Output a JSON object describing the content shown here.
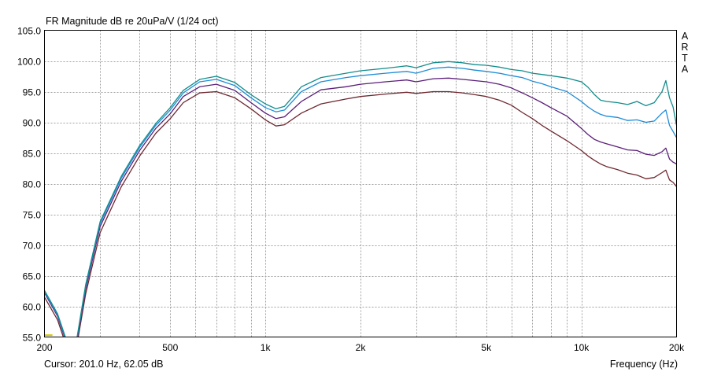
{
  "title": "FR Magnitude dB re 20uPa/V (1/24 oct)",
  "watermark": [
    "A",
    "R",
    "T",
    "A"
  ],
  "cursor_text": "Cursor: 201.0 Hz, 62.05 dB",
  "xlabel": "Frequency (Hz)",
  "chart_data": {
    "type": "line",
    "title": "FR Magnitude dB re 20uPa/V (1/24 oct)",
    "xlabel": "Frequency (Hz)",
    "ylabel": "",
    "xscale": "log",
    "xlim": [
      200,
      20000
    ],
    "ylim": [
      55,
      105
    ],
    "grid": true,
    "x_ticks": [
      {
        "value": 200,
        "label": "200"
      },
      {
        "value": 500,
        "label": "500"
      },
      {
        "value": 1000,
        "label": "1k"
      },
      {
        "value": 2000,
        "label": "2k"
      },
      {
        "value": 5000,
        "label": "5k"
      },
      {
        "value": 10000,
        "label": "10k"
      },
      {
        "value": 20000,
        "label": "20k"
      }
    ],
    "x_minor_grid": [
      300,
      400,
      600,
      700,
      800,
      900,
      3000,
      4000,
      6000,
      7000,
      8000,
      9000
    ],
    "y_ticks": [
      {
        "value": 105,
        "label": "105.0"
      },
      {
        "value": 100,
        "label": "100.0"
      },
      {
        "value": 95,
        "label": "95.0"
      },
      {
        "value": 90,
        "label": "90.0"
      },
      {
        "value": 85,
        "label": "85.0"
      },
      {
        "value": 80,
        "label": "80.0"
      },
      {
        "value": 75,
        "label": "75.0"
      },
      {
        "value": 70,
        "label": "70.0"
      },
      {
        "value": 65,
        "label": "65.0"
      },
      {
        "value": 60,
        "label": "60.0"
      },
      {
        "value": 55,
        "label": "55.0"
      }
    ],
    "series": [
      {
        "color": "#138c8c",
        "x": [
          200,
          220,
          240,
          250,
          270,
          300,
          350,
          400,
          450,
          500,
          550,
          620,
          700,
          800,
          900,
          1000,
          1080,
          1150,
          1300,
          1500,
          1800,
          2000,
          2400,
          2800,
          3000,
          3400,
          3800,
          4200,
          4600,
          5000,
          5500,
          6000,
          6500,
          7000,
          7500,
          8000,
          9000,
          10000,
          10500,
          11000,
          11500,
          12000,
          13000,
          14000,
          15000,
          16000,
          17000,
          18000,
          18500,
          19000,
          19500,
          20000
        ],
        "y": [
          62.6,
          58.8,
          53.0,
          53.0,
          63.5,
          73.8,
          81.2,
          86.2,
          89.8,
          92.4,
          95.2,
          97.0,
          97.5,
          96.5,
          94.5,
          93.0,
          92.2,
          92.6,
          95.8,
          97.3,
          98.0,
          98.4,
          98.8,
          99.2,
          98.9,
          99.7,
          99.9,
          99.7,
          99.4,
          99.3,
          99.0,
          98.6,
          98.4,
          98.0,
          97.8,
          97.6,
          97.2,
          96.6,
          95.7,
          94.5,
          93.6,
          93.4,
          93.2,
          92.9,
          93.4,
          92.7,
          93.2,
          95.0,
          96.8,
          94.0,
          92.5,
          89.5
        ]
      },
      {
        "color": "#1e8cd6",
        "x": [
          200,
          220,
          240,
          250,
          270,
          300,
          350,
          400,
          450,
          500,
          550,
          620,
          700,
          800,
          900,
          1000,
          1080,
          1150,
          1300,
          1500,
          1800,
          2000,
          2400,
          2800,
          3000,
          3400,
          3800,
          4200,
          4600,
          5000,
          5500,
          6000,
          6500,
          7000,
          7500,
          8000,
          9000,
          10000,
          10500,
          11000,
          11500,
          12000,
          13000,
          14000,
          15000,
          16000,
          17000,
          18000,
          18500,
          19000,
          19500,
          20000
        ],
        "y": [
          62.4,
          58.6,
          52.8,
          52.8,
          63.2,
          73.5,
          80.9,
          85.9,
          89.5,
          92.0,
          94.8,
          96.6,
          97.0,
          96.0,
          94.0,
          92.4,
          91.7,
          92.0,
          95.0,
          96.6,
          97.3,
          97.6,
          98.0,
          98.3,
          98.0,
          98.8,
          99.0,
          98.8,
          98.5,
          98.3,
          98.0,
          97.6,
          97.3,
          96.7,
          96.3,
          95.8,
          95.0,
          93.4,
          92.5,
          91.8,
          91.3,
          91.0,
          90.8,
          90.3,
          90.4,
          90.0,
          90.2,
          91.5,
          92.0,
          89.5,
          88.5,
          87.5
        ]
      },
      {
        "color": "#5a1e78",
        "x": [
          200,
          220,
          240,
          250,
          270,
          300,
          350,
          400,
          450,
          500,
          550,
          620,
          700,
          800,
          900,
          1000,
          1080,
          1150,
          1300,
          1500,
          1800,
          2000,
          2400,
          2800,
          3000,
          3400,
          3800,
          4200,
          4600,
          5000,
          5500,
          6000,
          6500,
          7000,
          7500,
          8000,
          9000,
          10000,
          10500,
          11000,
          11500,
          12000,
          13000,
          14000,
          15000,
          16000,
          17000,
          18000,
          18500,
          19000,
          19500,
          20000
        ],
        "y": [
          62.2,
          58.4,
          52.6,
          52.6,
          62.8,
          73.0,
          80.4,
          85.4,
          89.0,
          91.4,
          94.2,
          95.8,
          96.2,
          95.2,
          93.2,
          91.5,
          90.6,
          90.9,
          93.4,
          95.3,
          95.8,
          96.2,
          96.6,
          96.9,
          96.6,
          97.1,
          97.2,
          97.0,
          96.8,
          96.6,
          96.2,
          95.6,
          94.8,
          94.0,
          93.2,
          92.4,
          91.0,
          89.0,
          88.0,
          87.2,
          86.8,
          86.5,
          86.0,
          85.5,
          85.4,
          84.8,
          84.6,
          85.2,
          85.8,
          84.0,
          83.5,
          83.2
        ]
      },
      {
        "color": "#6e2830",
        "x": [
          200,
          220,
          240,
          250,
          270,
          300,
          350,
          400,
          450,
          500,
          550,
          620,
          700,
          800,
          900,
          1000,
          1080,
          1150,
          1300,
          1500,
          1800,
          2000,
          2400,
          2800,
          3000,
          3400,
          3800,
          4200,
          4600,
          5000,
          5500,
          6000,
          6500,
          7000,
          7500,
          8000,
          9000,
          10000,
          10500,
          11000,
          11500,
          12000,
          13000,
          14000,
          15000,
          16000,
          17000,
          18000,
          18500,
          19000,
          19500,
          20000
        ],
        "y": [
          61.5,
          57.8,
          52.0,
          52.0,
          62.0,
          72.0,
          79.5,
          84.5,
          88.2,
          90.6,
          93.2,
          94.8,
          95.0,
          94.0,
          92.2,
          90.4,
          89.4,
          89.6,
          91.5,
          93.0,
          93.8,
          94.2,
          94.6,
          94.9,
          94.7,
          95.0,
          95.0,
          94.8,
          94.5,
          94.2,
          93.6,
          92.8,
          91.6,
          90.6,
          89.5,
          88.6,
          87.0,
          85.4,
          84.5,
          83.8,
          83.2,
          82.8,
          82.3,
          81.7,
          81.4,
          80.8,
          81.0,
          81.8,
          82.2,
          80.6,
          80.2,
          79.5
        ]
      }
    ],
    "marker": {
      "color": "#d4c800",
      "y": 55.3,
      "x_range": [
        200,
        212
      ]
    }
  }
}
